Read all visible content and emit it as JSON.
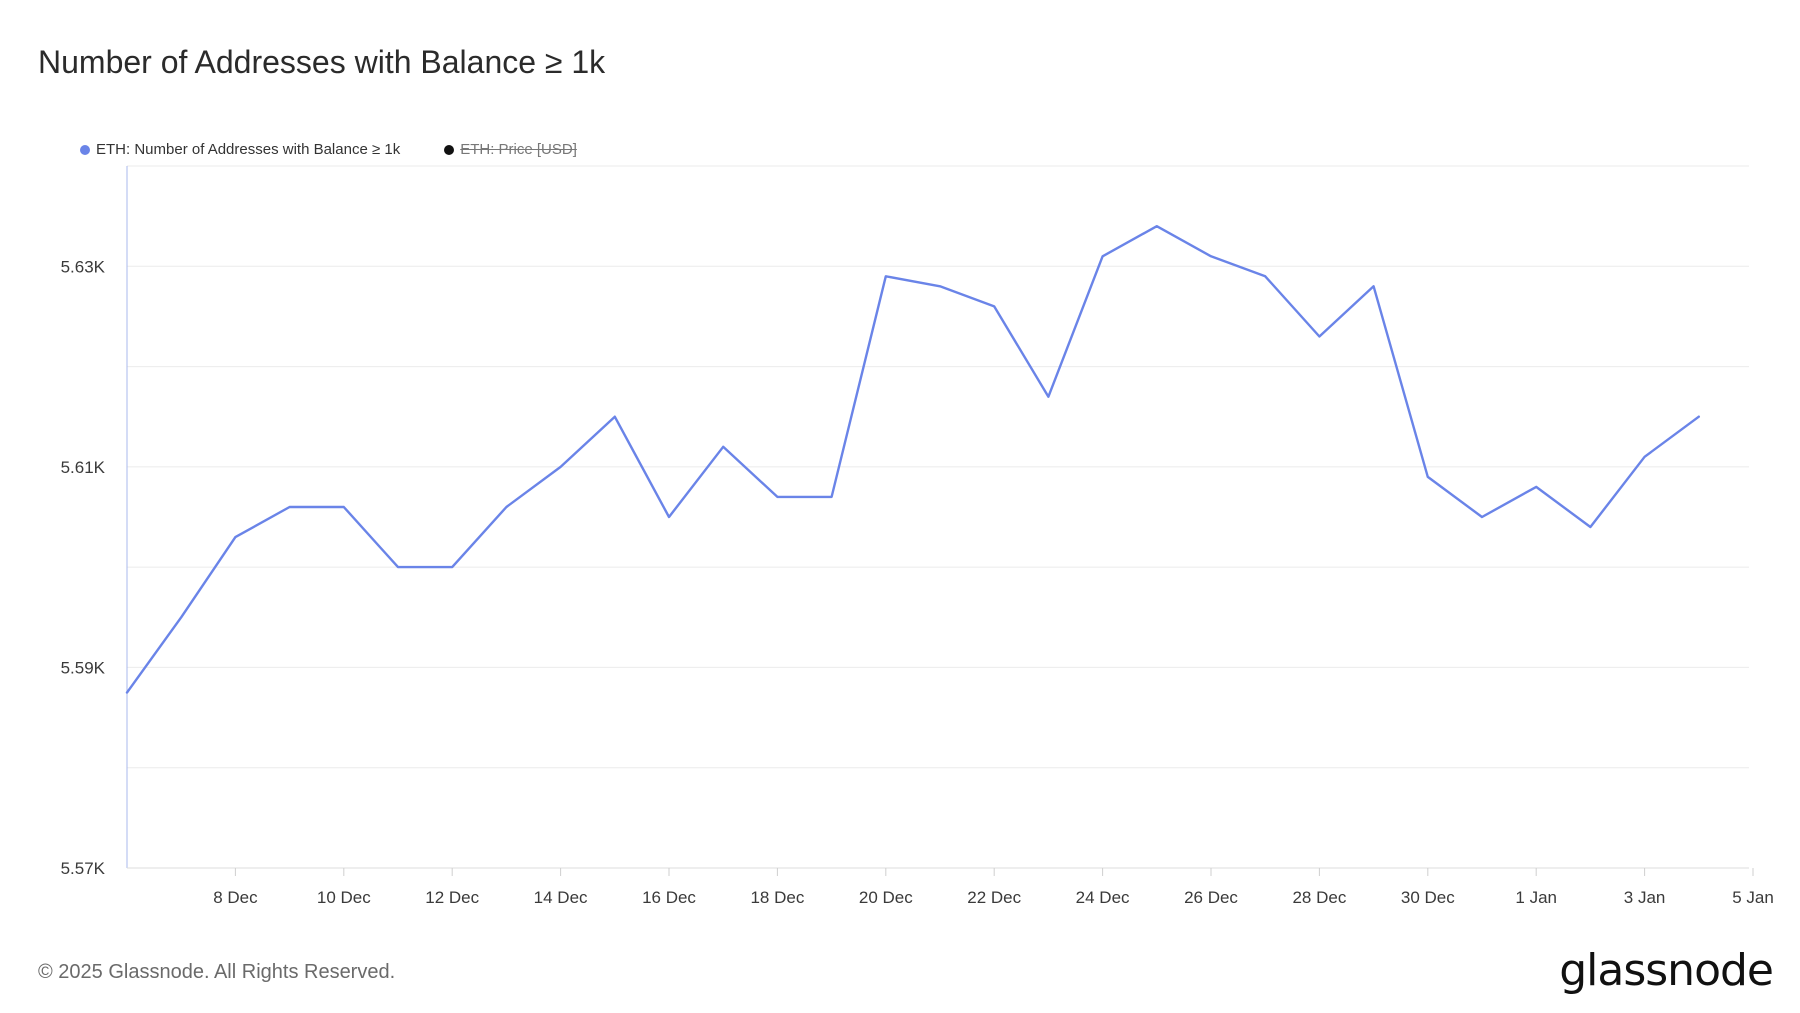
{
  "title": "Number of Addresses with Balance ≥ 1k",
  "legend": {
    "items": [
      {
        "label": "ETH: Number of Addresses with Balance ≥ 1k",
        "color": "#6a84e8",
        "enabled": true
      },
      {
        "label": "ETH: Price [USD]",
        "color": "#111111",
        "enabled": false
      }
    ]
  },
  "footer": {
    "copyright": "© 2025 Glassnode. All Rights Reserved.",
    "logo": "glassnode"
  },
  "chart_data": {
    "type": "line",
    "title": "Number of Addresses with Balance ≥ 1k",
    "xlabel": "",
    "ylabel": "",
    "x_ticks": [
      "8 Dec",
      "10 Dec",
      "12 Dec",
      "14 Dec",
      "16 Dec",
      "18 Dec",
      "20 Dec",
      "22 Dec",
      "24 Dec",
      "26 Dec",
      "28 Dec",
      "30 Dec",
      "1 Jan",
      "3 Jan",
      "5 Jan"
    ],
    "y_ticks": [
      "5.57K",
      "5.59K",
      "5.61K",
      "5.63K"
    ],
    "ylim": [
      5570,
      5640
    ],
    "grid": true,
    "legend_position": "top-left",
    "series": [
      {
        "name": "ETH: Number of Addresses with Balance ≥ 1k",
        "color": "#6a84e8",
        "x": [
          "2024-12-06",
          "2024-12-07",
          "2024-12-08",
          "2024-12-09",
          "2024-12-10",
          "2024-12-11",
          "2024-12-12",
          "2024-12-13",
          "2024-12-14",
          "2024-12-15",
          "2024-12-16",
          "2024-12-17",
          "2024-12-18",
          "2024-12-19",
          "2024-12-20",
          "2024-12-21",
          "2024-12-22",
          "2024-12-23",
          "2024-12-24",
          "2024-12-25",
          "2024-12-26",
          "2024-12-27",
          "2024-12-28",
          "2024-12-29",
          "2024-12-30",
          "2024-12-31",
          "2025-01-01",
          "2025-01-02",
          "2025-01-03",
          "2025-01-04"
        ],
        "values": [
          5587.5,
          5595,
          5603,
          5606,
          5606,
          5600,
          5600,
          5606,
          5610,
          5615,
          5605,
          5612,
          5607,
          5607,
          5629,
          5628,
          5626,
          5617,
          5631,
          5634,
          5631,
          5629,
          5623,
          5628,
          5609,
          5605,
          5608,
          5604,
          5611,
          5615
        ]
      }
    ]
  }
}
